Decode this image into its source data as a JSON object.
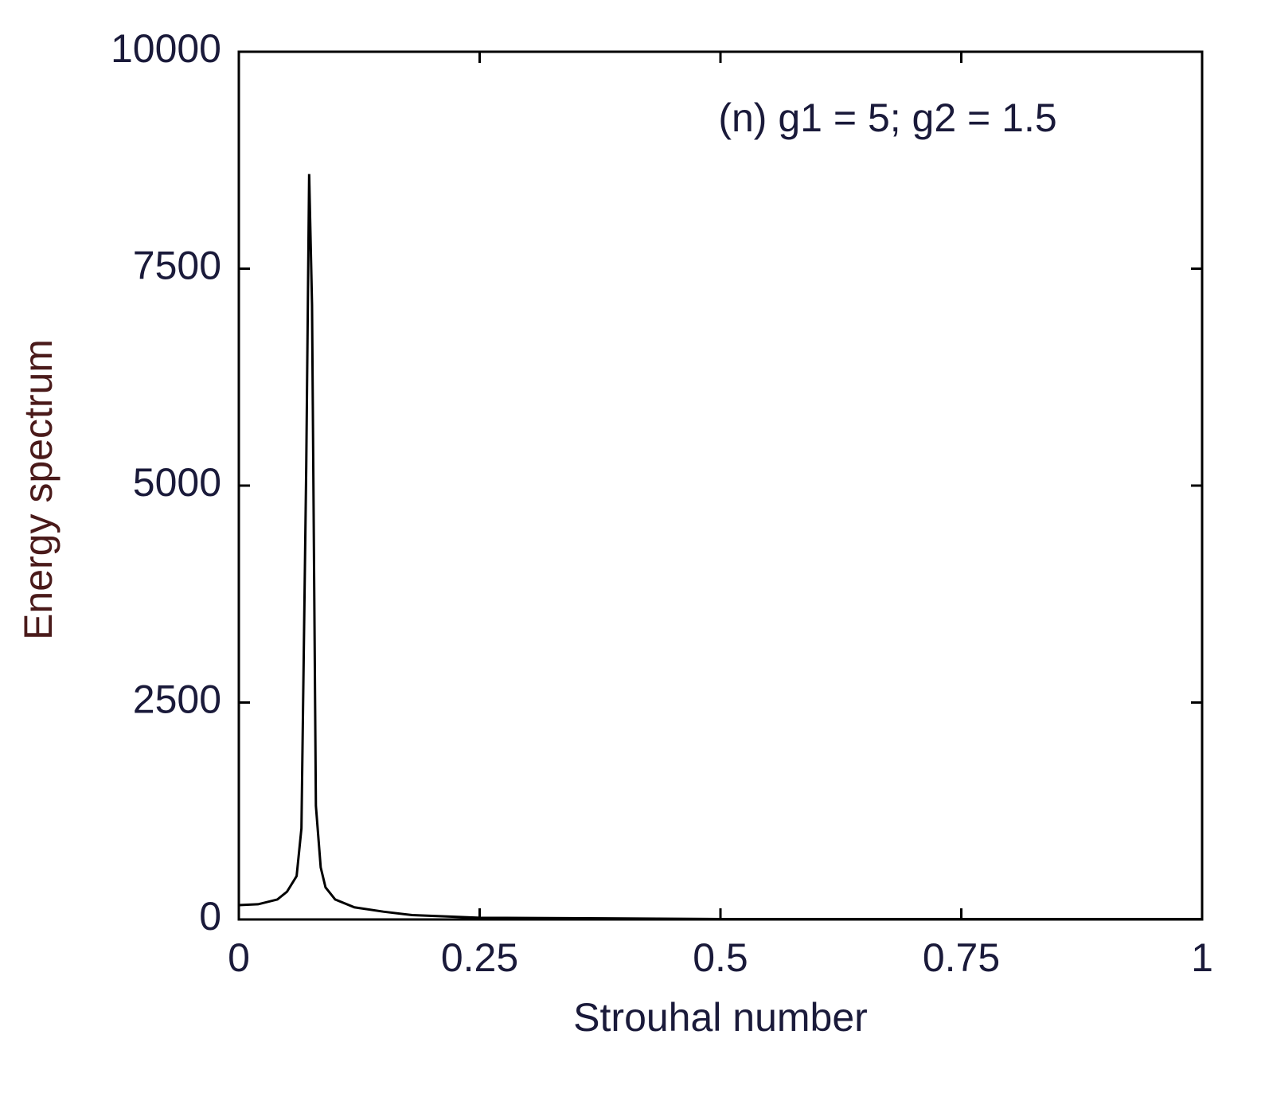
{
  "chart_data": {
    "type": "line",
    "x_label": "Strouhal number",
    "y_label": "Energy spectrum",
    "annotation": "(n) g1 = 5; g2 = 1.5",
    "x": [
      0,
      0.02,
      0.04,
      0.05,
      0.06,
      0.065,
      0.07,
      0.073,
      0.076,
      0.08,
      0.085,
      0.09,
      0.1,
      0.12,
      0.15,
      0.18,
      0.25,
      0.5,
      1
    ],
    "series": [
      {
        "color": "#000000",
        "values": [
          165,
          175,
          230,
          320,
          500,
          1050,
          5230,
          8590,
          7080,
          1310,
          600,
          370,
          230,
          140,
          90,
          50,
          20,
          5,
          5
        ]
      }
    ],
    "xlim": [
      0,
      1
    ],
    "xticks": [
      0,
      0.25,
      0.5,
      0.75,
      1
    ],
    "ylim": [
      0,
      10000
    ],
    "yticks": [
      0,
      2500,
      5000,
      7500,
      10000
    ],
    "grid": false
  }
}
